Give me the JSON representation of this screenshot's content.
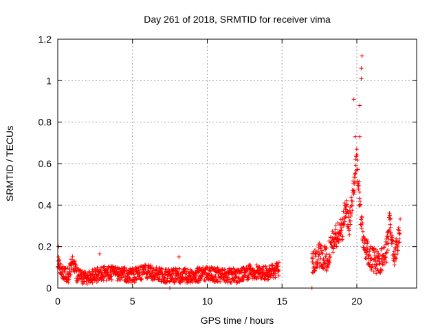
{
  "chart_data": {
    "type": "scatter",
    "title": "Day 261 of 2018, SRMTID for receiver vima",
    "xlabel": "GPS time / hours",
    "ylabel": "SRMTID / TECUs",
    "xlim": [
      0,
      24
    ],
    "ylim": [
      0,
      1.2
    ],
    "xticks": [
      0,
      5,
      10,
      15,
      20
    ],
    "xtick_labels": [
      "0",
      "5",
      "10",
      "15",
      "20"
    ],
    "yticks": [
      0,
      0.2,
      0.4,
      0.6,
      0.8,
      1.0,
      1.2
    ],
    "ytick_labels": [
      "0",
      "0.2",
      "0.4",
      "0.6",
      "0.8",
      "1",
      "1.2"
    ],
    "grid": true,
    "marker": "+",
    "color": "#ff0000",
    "series": [
      {
        "name": "SRMTID",
        "segments": [
          {
            "x_start": 0.0,
            "x_end": 14.8,
            "profile": [
              [
                0.0,
                0.13
              ],
              [
                0.3,
                0.08
              ],
              [
                0.7,
                0.06
              ],
              [
                1.0,
                0.13
              ],
              [
                1.3,
                0.06
              ],
              [
                2.0,
                0.05
              ],
              [
                3.0,
                0.07
              ],
              [
                4.0,
                0.07
              ],
              [
                5.0,
                0.06
              ],
              [
                6.0,
                0.08
              ],
              [
                7.0,
                0.06
              ],
              [
                8.0,
                0.06
              ],
              [
                9.0,
                0.06
              ],
              [
                10.0,
                0.07
              ],
              [
                11.0,
                0.06
              ],
              [
                12.0,
                0.06
              ],
              [
                13.0,
                0.08
              ],
              [
                14.0,
                0.07
              ],
              [
                14.8,
                0.09
              ]
            ],
            "spread": 0.035
          },
          {
            "x_start": 17.0,
            "x_end": 22.9,
            "profile": [
              [
                17.0,
                0.12
              ],
              [
                17.5,
                0.16
              ],
              [
                18.0,
                0.14
              ],
              [
                18.5,
                0.24
              ],
              [
                19.0,
                0.28
              ],
              [
                19.3,
                0.4
              ],
              [
                19.5,
                0.3
              ],
              [
                19.8,
                0.5
              ],
              [
                20.0,
                0.62
              ],
              [
                20.2,
                0.4
              ],
              [
                20.5,
                0.2
              ],
              [
                21.0,
                0.14
              ],
              [
                21.5,
                0.12
              ],
              [
                22.0,
                0.18
              ],
              [
                22.2,
                0.32
              ],
              [
                22.5,
                0.16
              ],
              [
                22.9,
                0.28
              ]
            ],
            "spread": 0.06
          }
        ],
        "highlights": [
          {
            "x": 0.05,
            "y": 0.2
          },
          {
            "x": 2.8,
            "y": 0.165
          },
          {
            "x": 7.5,
            "y": 0.0
          },
          {
            "x": 8.1,
            "y": 0.15
          },
          {
            "x": 17.0,
            "y": 0.0
          },
          {
            "x": 19.8,
            "y": 0.91
          },
          {
            "x": 19.9,
            "y": 0.73
          },
          {
            "x": 20.2,
            "y": 0.73
          },
          {
            "x": 20.2,
            "y": 0.88
          },
          {
            "x": 20.3,
            "y": 1.01
          },
          {
            "x": 20.3,
            "y": 1.06
          },
          {
            "x": 20.35,
            "y": 1.12
          }
        ]
      }
    ]
  }
}
